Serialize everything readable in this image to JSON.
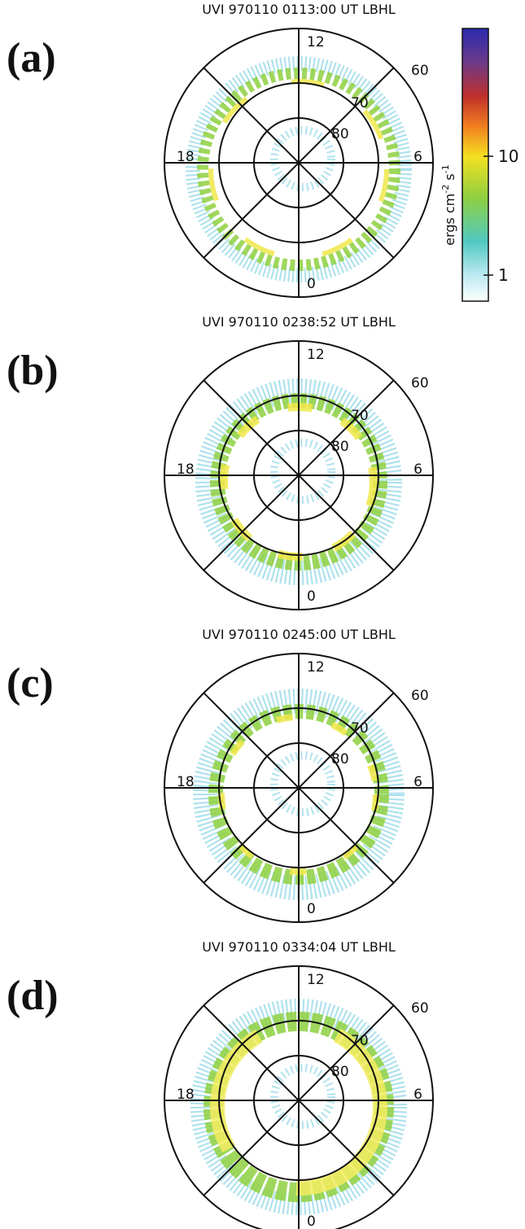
{
  "panels": [
    {
      "label": "(a)",
      "title": "UVI 970110 0113:00 UT LBHL"
    },
    {
      "label": "(b)",
      "title": "UVI 970110 0238:52 UT LBHL"
    },
    {
      "label": "(c)",
      "title": "UVI 970110 0245:00 UT LBHL"
    },
    {
      "label": "(d)",
      "title": "UVI 970110 0334:04 UT LBHL"
    }
  ],
  "grid_labels": {
    "mlt": [
      "12",
      "18",
      "6",
      "0"
    ],
    "mlat": [
      "60",
      "70",
      "80"
    ]
  },
  "colorbar": {
    "label": [
      "ergs cm",
      "-2",
      " s",
      "-1"
    ],
    "ticks": [
      1,
      10
    ],
    "log": true
  }
}
